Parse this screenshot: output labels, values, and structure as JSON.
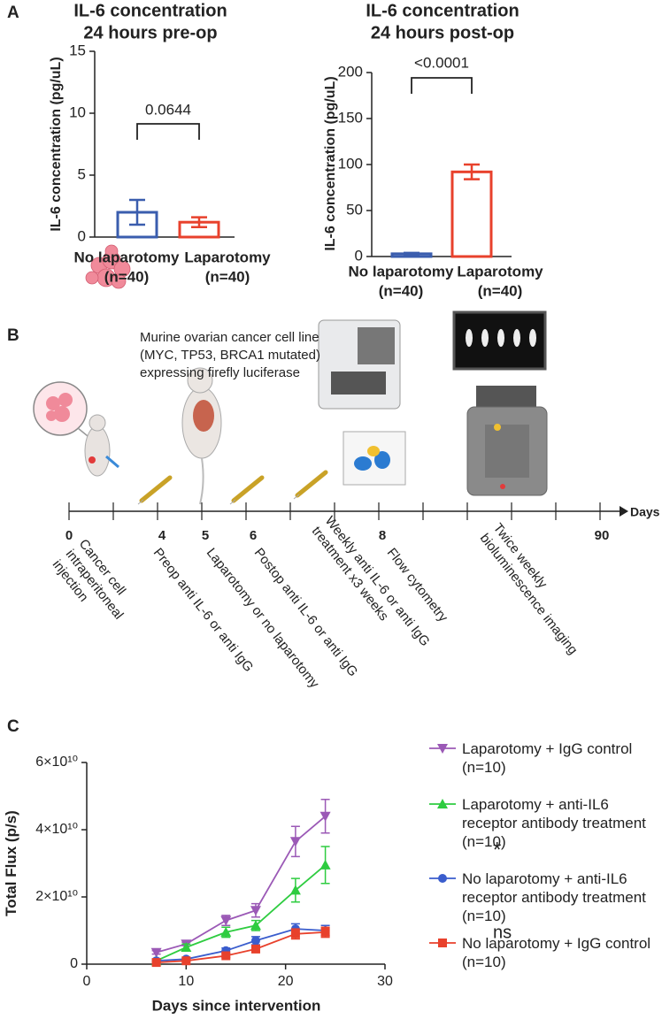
{
  "panel_labels": [
    "A",
    "B",
    "C"
  ],
  "chart_data": [
    {
      "type": "bar",
      "title": [
        "IL-6 concentration",
        "24 hours pre-op"
      ],
      "categories": [
        [
          "No laparotomy",
          "(n=40)"
        ],
        [
          "Laparotomy",
          "(n=40)"
        ]
      ],
      "values": [
        2.0,
        1.2
      ],
      "errors": [
        1.0,
        0.4
      ],
      "colors": [
        "#3a5dae",
        "#e8412c"
      ],
      "y_label": "IL-6 concentration (pg/uL)",
      "ylim": [
        0,
        15
      ],
      "yticks": [
        0,
        5,
        10,
        15
      ],
      "annotation": "0.0644"
    },
    {
      "type": "bar",
      "title": [
        "IL-6 concentration",
        "24 hours post-op"
      ],
      "categories": [
        [
          "No laparotomy",
          "(n=40)"
        ],
        [
          "Laparotomy",
          "(n=40)"
        ]
      ],
      "values": [
        3,
        92
      ],
      "errors": [
        1,
        8
      ],
      "colors": [
        "#3a5dae",
        "#e8412c"
      ],
      "y_label": "IL-6 concentration (pg/uL)",
      "ylim": [
        0,
        200
      ],
      "yticks": [
        0,
        50,
        100,
        150,
        200
      ],
      "annotation": "<0.0001"
    },
    {
      "type": "line",
      "x_label": "Days since intervention",
      "y_label": "Total Flux (p/s)",
      "x": [
        7,
        10,
        14,
        17,
        21,
        24
      ],
      "xlim": [
        0,
        30
      ],
      "xticks": [
        0,
        10,
        20,
        30
      ],
      "ylim": [
        0,
        60000000000
      ],
      "yticks": [
        0,
        {
          "value": 20000000000,
          "label": "2×10¹⁰"
        },
        {
          "value": 40000000000,
          "label": "4×10¹⁰"
        },
        {
          "value": 60000000000,
          "label": "6×10¹⁰"
        }
      ],
      "series": [
        {
          "name": "Laparotomy + IgG control (n=10)",
          "color": "#9b59b6",
          "marker": "triangle-down",
          "values": [
            3500000000,
            6000000000,
            13000000000,
            16000000000,
            36500000000,
            44000000000
          ],
          "errors": [
            500000000,
            500000000,
            1500000000,
            2000000000,
            4500000000,
            5000000000
          ]
        },
        {
          "name": "Laparotomy + anti-IL6 receptor antibody treatment (n=10)",
          "color": "#2ecc40",
          "marker": "triangle-up",
          "values": [
            1000000000,
            5000000000,
            9500000000,
            11500000000,
            22000000000,
            29500000000
          ],
          "errors": [
            500000000,
            1000000000,
            1500000000,
            1500000000,
            3500000000,
            5500000000
          ]
        },
        {
          "name": "No laparotomy + anti-IL6 receptor antibody treatment (n=10)",
          "color": "#3a5dcd",
          "marker": "circle",
          "values": [
            1000000000,
            1500000000,
            4000000000,
            7000000000,
            10500000000,
            10000000000
          ],
          "errors": [
            300000000,
            300000000,
            800000000,
            1200000000,
            1500000000,
            1500000000
          ]
        },
        {
          "name": "No laparotomy + IgG control (n=10)",
          "color": "#e8412c",
          "marker": "square",
          "values": [
            500000000,
            1000000000,
            2500000000,
            4500000000,
            9000000000,
            9500000000
          ],
          "errors": [
            200000000,
            300000000,
            500000000,
            800000000,
            1500000000,
            1500000000
          ]
        }
      ],
      "annotations": [
        "*",
        "ns"
      ]
    }
  ],
  "timeline": {
    "cell_line": [
      "Murine ovarian cancer cell line",
      "(MYC, TP53, BRCA1 mutated)",
      "expressing firefly luciferase"
    ],
    "axis_label": "Days",
    "days": [
      0,
      4,
      5,
      6,
      8,
      90
    ],
    "events": [
      [
        "Cancer cell",
        "intraperitoneal",
        "injection"
      ],
      [
        "Preop anti IL-6 or anti IgG"
      ],
      [
        "Laparotomy or no laparotomy"
      ],
      [
        "Postop anti IL-6 or anti IgG"
      ],
      [
        "Weekly anti IL-6 or anti IgG",
        "treatment x3 weeks"
      ],
      [
        "Flow cytometry"
      ],
      [
        "Twice weekly",
        "bioluminescence imaging"
      ]
    ]
  }
}
